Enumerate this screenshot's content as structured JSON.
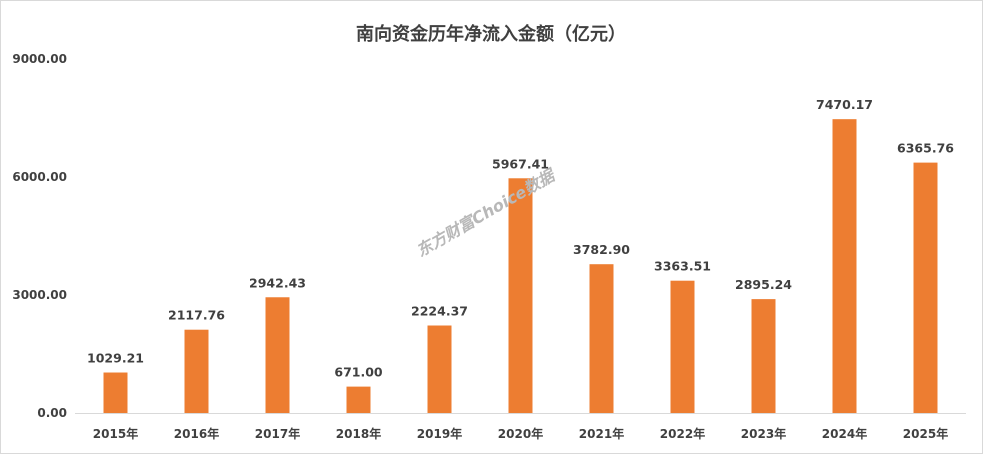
{
  "watermark": "东方财富Choice数据",
  "chart_data": {
    "type": "bar",
    "title": "南向资金历年净流入金额（亿元）",
    "xlabel": "",
    "ylabel": "",
    "categories": [
      "2015年",
      "2016年",
      "2017年",
      "2018年",
      "2019年",
      "2020年",
      "2021年",
      "2022年",
      "2023年",
      "2024年",
      "2025年"
    ],
    "values": [
      1029.21,
      2117.76,
      2942.43,
      671.0,
      2224.37,
      5967.41,
      3782.9,
      3363.51,
      2895.24,
      7470.17,
      6365.76
    ],
    "value_labels": [
      "1029.21",
      "2117.76",
      "2942.43",
      "671.00",
      "2224.37",
      "5967.41",
      "3782.90",
      "3363.51",
      "2895.24",
      "7470.17",
      "6365.76"
    ],
    "ylim": [
      0,
      9000
    ],
    "yticks": [
      0,
      3000,
      6000,
      9000
    ],
    "ytick_labels": [
      "0.00",
      "3000.00",
      "6000.00",
      "9000.00"
    ],
    "bar_color": "#ED7D31",
    "grid": false,
    "legend": "none"
  }
}
